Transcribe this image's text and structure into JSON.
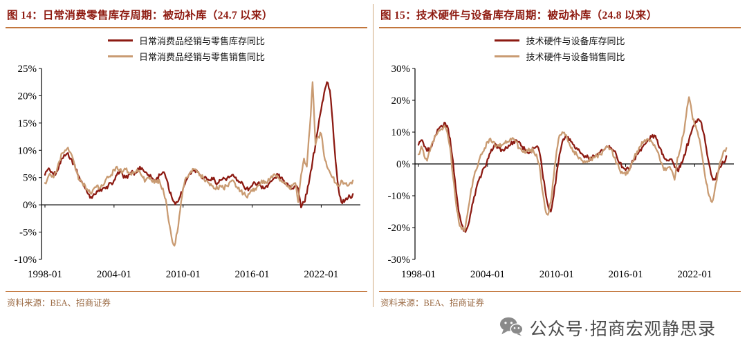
{
  "panels": [
    {
      "title": "图 14：日常消费零售库存周期：被动补库（24.7 以来）",
      "source": "资料来源：BEA、招商证券"
    },
    {
      "title": "图 15：技术硬件与设备库存周期：被动补库（24.8 以来）",
      "source": "资料来源：BEA、招商证券"
    }
  ],
  "footer": {
    "label": "公众号·招商宏观静思录",
    "icon": "wechat-icon"
  },
  "colors": {
    "title_red": "#8E1A10",
    "rule_orange": "#C2763C",
    "series_dark_red": "#8C1A12",
    "series_tan": "#C99B72",
    "source_brown": "#9B6B45",
    "footer_gray": "#4A4A4A"
  },
  "chart_data": [
    {
      "type": "line",
      "title": "图 14：日常消费零售库存周期：被动补库（24.7 以来）",
      "xlabel": "",
      "ylabel": "",
      "grid": false,
      "legend_position": "top",
      "x_start": 1998.0,
      "x_step": 0.25,
      "x_range": [
        1997.7,
        2025.4
      ],
      "x_ticks": [
        1998,
        2004,
        2010,
        2016,
        2022
      ],
      "x_tick_labels": [
        "1998-01",
        "2004-01",
        "2010-01",
        "2016-01",
        "2022-01"
      ],
      "ylim": [
        -10,
        25
      ],
      "y_tick_step": 5,
      "series": [
        {
          "name": "日常消费品经销与零售库存同比",
          "color": "#8C1A12",
          "values": [
            5.5,
            6.5,
            6.0,
            5.5,
            6.0,
            7.5,
            8.5,
            9.0,
            9.5,
            8.5,
            7.5,
            6.5,
            5.0,
            4.0,
            3.0,
            2.0,
            1.5,
            2.0,
            2.5,
            2.5,
            3.0,
            3.0,
            3.5,
            4.0,
            4.5,
            5.5,
            6.0,
            5.5,
            5.0,
            5.5,
            6.0,
            5.5,
            6.0,
            7.0,
            6.5,
            6.0,
            5.5,
            5.0,
            4.5,
            5.0,
            5.5,
            6.0,
            5.0,
            3.0,
            1.5,
            0.5,
            0.5,
            1.5,
            3.0,
            4.5,
            5.5,
            6.0,
            6.5,
            6.0,
            5.5,
            5.0,
            5.0,
            4.5,
            5.0,
            4.5,
            4.0,
            4.5,
            5.0,
            4.5,
            5.0,
            5.5,
            5.0,
            4.5,
            4.0,
            3.5,
            3.0,
            3.0,
            3.5,
            4.0,
            4.0,
            3.5,
            3.0,
            3.5,
            4.0,
            4.5,
            5.0,
            5.5,
            5.0,
            4.5,
            4.0,
            3.5,
            3.0,
            3.5,
            3.0,
            -0.5,
            0.5,
            2.0,
            5.0,
            8.0,
            11.0,
            14.5,
            17.5,
            20.5,
            22.5,
            21.0,
            15.0,
            8.0,
            3.0,
            0.5,
            0.5,
            1.0,
            1.5,
            2.0
          ]
        },
        {
          "name": "日常消费品经销与零售销售同比",
          "color": "#C99B72",
          "values": [
            4.0,
            5.0,
            5.5,
            5.0,
            6.0,
            8.0,
            9.5,
            10.0,
            10.5,
            9.5,
            8.0,
            6.0,
            4.5,
            4.0,
            3.5,
            2.5,
            2.0,
            3.0,
            3.5,
            3.0,
            3.5,
            4.5,
            5.0,
            5.5,
            6.5,
            7.0,
            6.5,
            6.0,
            6.5,
            6.0,
            5.5,
            6.0,
            6.5,
            6.0,
            5.0,
            4.5,
            5.0,
            4.5,
            4.0,
            4.5,
            4.0,
            3.0,
            1.0,
            -3.0,
            -6.0,
            -7.5,
            -5.0,
            -1.0,
            3.0,
            5.0,
            5.5,
            6.0,
            6.5,
            6.0,
            5.5,
            5.0,
            4.5,
            4.0,
            3.5,
            3.0,
            3.0,
            3.5,
            3.0,
            3.5,
            4.0,
            4.5,
            4.0,
            3.0,
            2.5,
            2.0,
            1.5,
            2.0,
            2.5,
            3.0,
            3.5,
            4.0,
            4.5,
            4.0,
            4.5,
            5.0,
            5.5,
            5.0,
            4.5,
            4.0,
            3.5,
            3.0,
            3.5,
            4.0,
            0.5,
            5.5,
            8.5,
            7.0,
            14.0,
            22.5,
            11.0,
            12.5,
            13.0,
            9.0,
            7.0,
            6.0,
            5.0,
            4.0,
            3.5,
            4.5,
            4.0,
            3.5,
            4.0,
            4.5
          ]
        }
      ]
    },
    {
      "type": "line",
      "title": "图 15：技术硬件与设备库存周期：被动补库（24.8 以来）",
      "xlabel": "",
      "ylabel": "",
      "grid": false,
      "legend_position": "top",
      "x_start": 1998.0,
      "x_step": 0.25,
      "x_range": [
        1997.7,
        2025.4
      ],
      "x_ticks": [
        1998,
        2004,
        2010,
        2016,
        2022
      ],
      "x_tick_labels": [
        "1998-01",
        "2004-01",
        "2010-01",
        "2016-01",
        "2022-01"
      ],
      "ylim": [
        -30,
        30
      ],
      "y_tick_step": 10,
      "series": [
        {
          "name": "技术硬件与设备库存同比",
          "color": "#8C1A12",
          "values": [
            6.0,
            7.5,
            5.5,
            4.0,
            5.0,
            7.0,
            9.0,
            11.0,
            12.0,
            13.0,
            12.0,
            8.0,
            1.0,
            -8.0,
            -15.0,
            -19.0,
            -21.0,
            -20.0,
            -16.0,
            -12.0,
            -8.0,
            -5.0,
            -3.0,
            -1.0,
            1.5,
            3.5,
            5.0,
            6.0,
            5.0,
            4.5,
            4.5,
            5.0,
            6.0,
            7.0,
            7.5,
            7.0,
            5.5,
            4.5,
            3.5,
            4.0,
            5.0,
            5.5,
            4.0,
            -2.0,
            -8.0,
            -13.0,
            -15.0,
            -10.0,
            -3.0,
            3.0,
            7.0,
            8.5,
            8.5,
            7.0,
            6.0,
            5.0,
            4.0,
            3.0,
            2.5,
            2.0,
            2.0,
            2.5,
            3.0,
            3.5,
            4.0,
            5.0,
            5.5,
            5.0,
            4.0,
            2.0,
            0.5,
            -1.0,
            -2.0,
            -1.5,
            0.0,
            1.5,
            3.0,
            4.5,
            5.5,
            6.5,
            7.5,
            8.5,
            9.0,
            7.5,
            5.0,
            3.0,
            1.5,
            1.0,
            1.5,
            -1.0,
            -2.0,
            -1.0,
            1.5,
            4.5,
            7.5,
            10.5,
            12.5,
            14.0,
            13.5,
            10.0,
            5.0,
            0.0,
            -4.0,
            -5.0,
            -3.0,
            -1.0,
            0.5,
            2.5
          ]
        },
        {
          "name": "技术硬件与设备销售同比",
          "color": "#C99B72",
          "values": [
            3.0,
            5.5,
            2.5,
            1.0,
            4.0,
            7.0,
            9.0,
            10.5,
            11.0,
            12.0,
            10.0,
            5.0,
            -4.0,
            -12.0,
            -18.0,
            -20.5,
            -21.0,
            -16.0,
            -10.0,
            -5.0,
            -2.0,
            1.0,
            3.0,
            5.0,
            7.0,
            8.0,
            7.0,
            5.5,
            5.5,
            6.0,
            6.5,
            7.0,
            8.0,
            8.0,
            7.0,
            5.0,
            4.0,
            3.5,
            4.0,
            4.5,
            4.0,
            3.0,
            0.0,
            -8.0,
            -14.0,
            -16.0,
            -12.0,
            -4.0,
            4.0,
            9.0,
            10.0,
            9.0,
            7.0,
            5.0,
            4.0,
            3.0,
            2.0,
            1.0,
            0.5,
            1.0,
            1.5,
            2.0,
            2.5,
            3.0,
            4.0,
            5.0,
            5.5,
            4.5,
            2.0,
            0.0,
            -2.0,
            -3.0,
            -3.5,
            -2.0,
            0.0,
            2.0,
            4.0,
            5.5,
            6.5,
            7.0,
            7.5,
            7.0,
            6.0,
            4.0,
            1.0,
            -1.0,
            -2.0,
            -1.0,
            -2.0,
            -5.0,
            2.0,
            4.5,
            9.0,
            15.0,
            21.0,
            16.0,
            12.0,
            10.0,
            6.0,
            0.0,
            -6.0,
            -10.0,
            -12.0,
            -8.0,
            -3.0,
            1.0,
            4.0,
            5.0
          ]
        }
      ]
    }
  ]
}
